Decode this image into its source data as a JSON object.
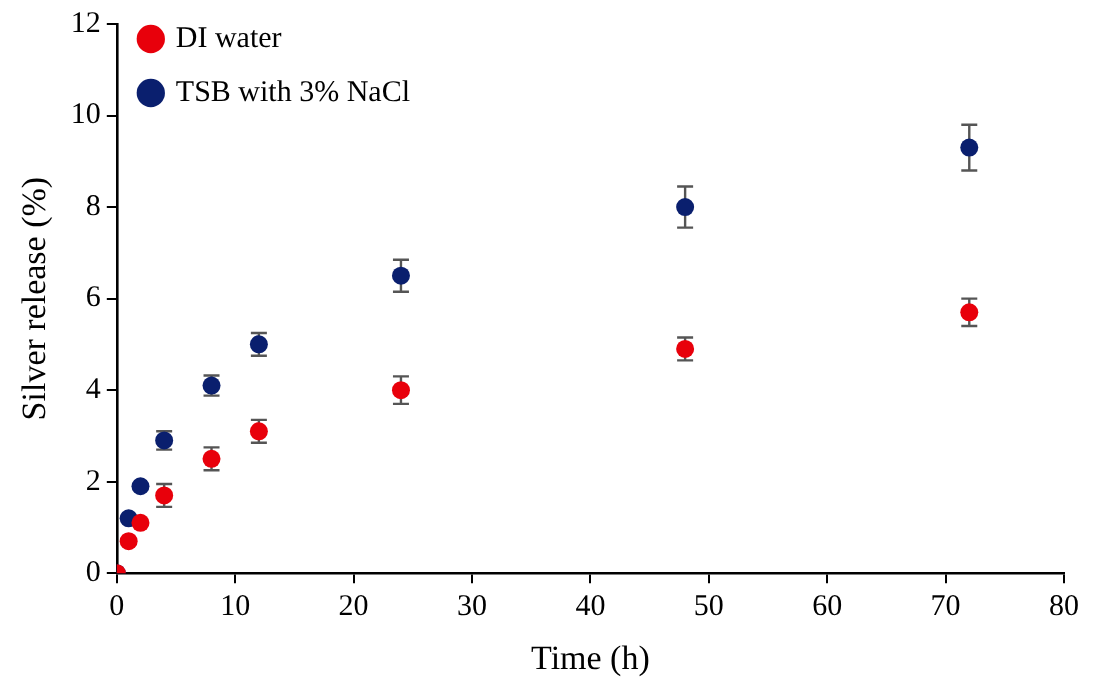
{
  "chart_data": {
    "type": "scatter",
    "xlabel": "Time (h)",
    "ylabel": "Silver release (%)",
    "xlim": [
      0,
      80
    ],
    "xticks": [
      0,
      10,
      20,
      30,
      40,
      50,
      60,
      70,
      80
    ],
    "ylim": [
      0,
      12
    ],
    "yticks": [
      0,
      2,
      4,
      6,
      8,
      10,
      12
    ],
    "grid": false,
    "legend": "top left",
    "marker": "circle",
    "series": [
      {
        "name": "DI water",
        "color": "#e8000b",
        "x": [
          0,
          1,
          2,
          4,
          8,
          12,
          24,
          48,
          72
        ],
        "values": [
          0,
          0.7,
          1.1,
          1.7,
          2.5,
          3.1,
          4.0,
          4.9,
          5.7
        ],
        "errors": [
          null,
          null,
          null,
          0.25,
          0.25,
          0.25,
          0.3,
          0.25,
          0.3
        ]
      },
      {
        "name": "TSB with 3% NaCl",
        "color": "#0a1f6e",
        "x": [
          0,
          1,
          2,
          4,
          8,
          12,
          24,
          48,
          72
        ],
        "values": [
          0,
          1.2,
          1.9,
          2.9,
          4.1,
          5.0,
          6.5,
          8.0,
          9.3
        ],
        "errors": [
          null,
          null,
          null,
          0.2,
          0.22,
          0.25,
          0.35,
          0.45,
          0.5
        ]
      }
    ]
  }
}
